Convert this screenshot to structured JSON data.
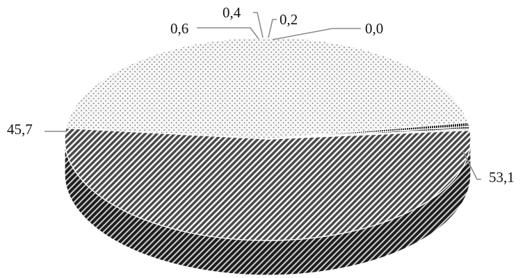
{
  "chart_data": {
    "type": "pie",
    "style": "3d",
    "title": "",
    "legend": "none",
    "slices": [
      {
        "label": "53,1",
        "value": 53.1,
        "pattern": "dark-diagonal"
      },
      {
        "label": "45,7",
        "value": 45.7,
        "pattern": "light-dots"
      },
      {
        "label": "0,6",
        "value": 0.6,
        "pattern": "dark-vertical"
      },
      {
        "label": "0,4",
        "value": 0.4,
        "pattern": "dark-fine"
      },
      {
        "label": "0,2",
        "value": 0.2,
        "pattern": "dark-grid"
      },
      {
        "label": "0,0",
        "value": 0.0,
        "pattern": "dark-fine"
      }
    ]
  }
}
